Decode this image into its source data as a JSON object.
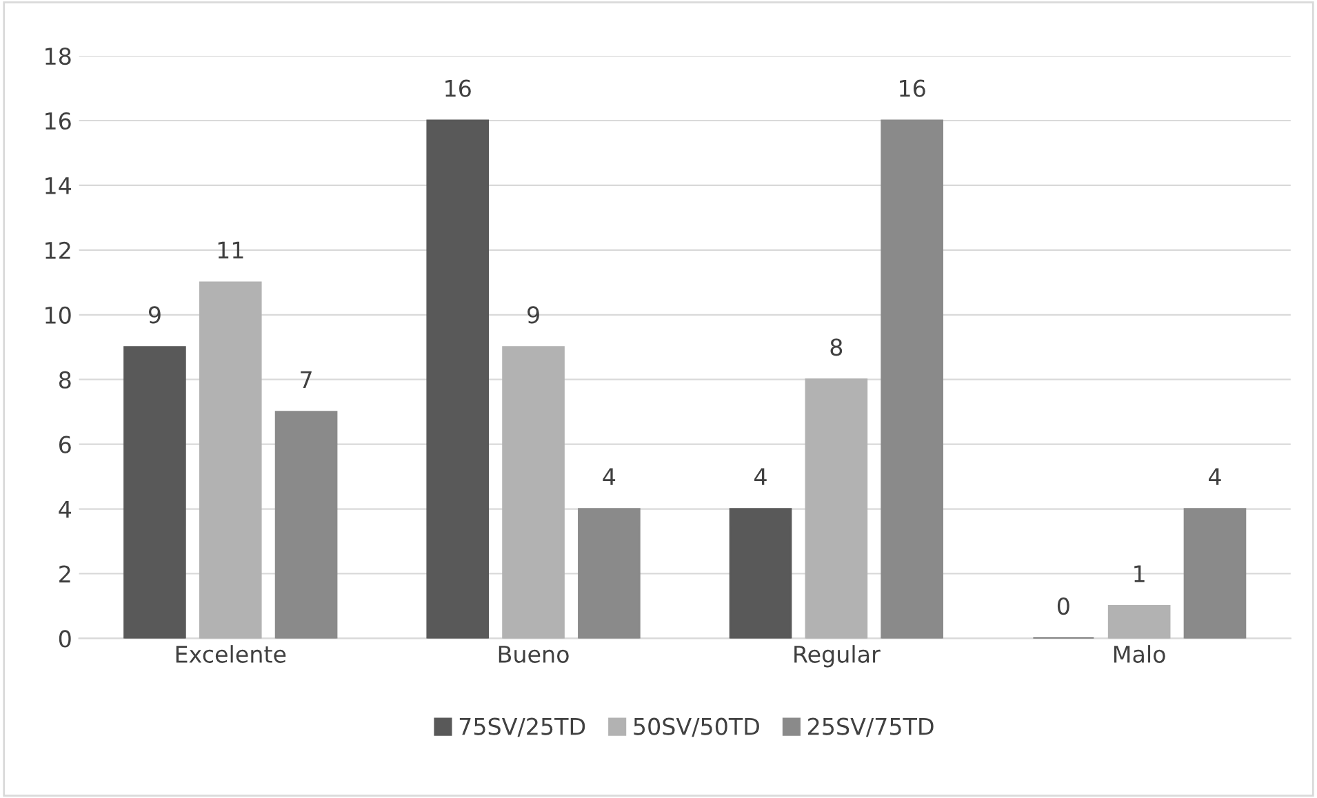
{
  "chart_data": {
    "type": "bar",
    "categories": [
      "Excelente",
      "Bueno",
      "Regular",
      "Malo"
    ],
    "series": [
      {
        "name": "75SV/25TD",
        "color": "#595959",
        "values": [
          9,
          16,
          4,
          0
        ]
      },
      {
        "name": "50SV/50TD",
        "color": "#b2b2b2",
        "values": [
          11,
          9,
          8,
          1
        ]
      },
      {
        "name": "25SV/75TD",
        "color": "#8a8a8a",
        "values": [
          7,
          4,
          16,
          4
        ]
      }
    ],
    "ylim": [
      0,
      18
    ],
    "yticks": [
      0,
      2,
      4,
      6,
      8,
      10,
      12,
      14,
      16,
      18
    ],
    "grid": "y",
    "legend": "bottom",
    "data_labels": true
  }
}
